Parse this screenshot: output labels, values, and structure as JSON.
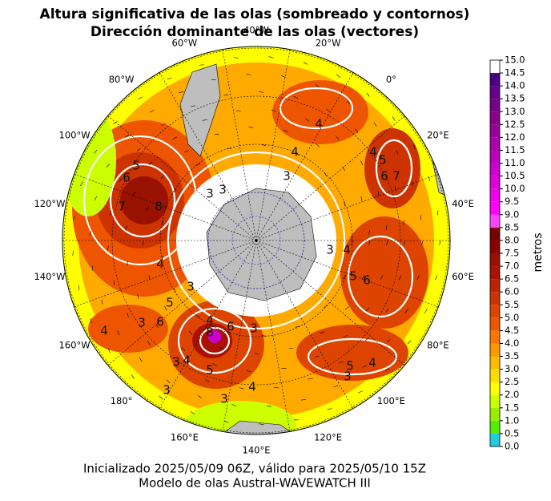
{
  "title": {
    "line1": "Altura significativa de las olas (sombreado y contornos)",
    "line2": "Dirección dominante de las olas (vectores)"
  },
  "map": {
    "longitude_labels": [
      "40°W",
      "20°W",
      "0°",
      "20°E",
      "40°E",
      "60°E",
      "80°E",
      "100°E",
      "120°E",
      "140°E",
      "160°E",
      "180°",
      "160°W",
      "140°W",
      "120°W",
      "100°W",
      "80°W",
      "60°W"
    ],
    "contour_labels": [
      "4",
      "4",
      "3",
      "3",
      "3",
      "4",
      "5",
      "6",
      "7",
      "3",
      "4",
      "5",
      "6",
      "4",
      "3",
      "5",
      "6",
      "3",
      "4",
      "4",
      "8",
      "6",
      "3",
      "5",
      "4",
      "3",
      "4",
      "3",
      "3",
      "5",
      "4",
      "3",
      "7",
      "8",
      "6",
      "5"
    ]
  },
  "colorbar": {
    "label": "metros",
    "ticks": [
      {
        "value": 0,
        "label": "0.0"
      },
      {
        "value": 0.5,
        "label": "0.5"
      },
      {
        "value": 1,
        "label": "1.0"
      },
      {
        "value": 1.5,
        "label": "1.5"
      },
      {
        "value": 2,
        "label": "2.0"
      },
      {
        "value": 2.5,
        "label": "2.5"
      },
      {
        "value": 3,
        "label": "3.0"
      },
      {
        "value": 3.5,
        "label": "3.5"
      },
      {
        "value": 4,
        "label": "4.0"
      },
      {
        "value": 4.5,
        "label": "4.5"
      },
      {
        "value": 5,
        "label": "5.0"
      },
      {
        "value": 5.5,
        "label": "5.5"
      },
      {
        "value": 6,
        "label": "6.0"
      },
      {
        "value": 6.5,
        "label": "6.5"
      },
      {
        "value": 7,
        "label": "7.0"
      },
      {
        "value": 7.5,
        "label": "7.5"
      },
      {
        "value": 8,
        "label": "8.0"
      },
      {
        "value": 8.5,
        "label": "8.5"
      },
      {
        "value": 9,
        "label": "9.0"
      },
      {
        "value": 9.5,
        "label": "9.5"
      },
      {
        "value": 10,
        "label": "10.0"
      },
      {
        "value": 10.5,
        "label": "10.5"
      },
      {
        "value": 11,
        "label": "11.0"
      },
      {
        "value": 11.5,
        "label": "11.5"
      },
      {
        "value": 12,
        "label": "12.0"
      },
      {
        "value": 12.5,
        "label": "12.5"
      },
      {
        "value": 13,
        "label": "13.0"
      },
      {
        "value": 13.5,
        "label": "13.5"
      },
      {
        "value": 14,
        "label": "14.0"
      },
      {
        "value": 14.5,
        "label": "14.5"
      },
      {
        "value": 15,
        "label": "15.0"
      }
    ],
    "colors": [
      "#22ccdd",
      "#55ee00",
      "#99ee00",
      "#ccff00",
      "#ffff00",
      "#ffdd00",
      "#ffbb00",
      "#ff9900",
      "#ff7700",
      "#ee5500",
      "#dd4400",
      "#cc3300",
      "#bb2200",
      "#aa1100",
      "#991100",
      "#880000",
      "#770000",
      "#ff44ff",
      "#ff00ff",
      "#ee00ee",
      "#dd00dd",
      "#cc00cc",
      "#bb00bb",
      "#aa00aa",
      "#990099",
      "#880088",
      "#770088",
      "#660088",
      "#4b0082"
    ]
  },
  "footer": {
    "line1": "Inicializado 2025/05/09 06Z, válido para 2025/05/10 15Z",
    "line2": "Modelo de olas Austral-WAVEWATCH III"
  }
}
